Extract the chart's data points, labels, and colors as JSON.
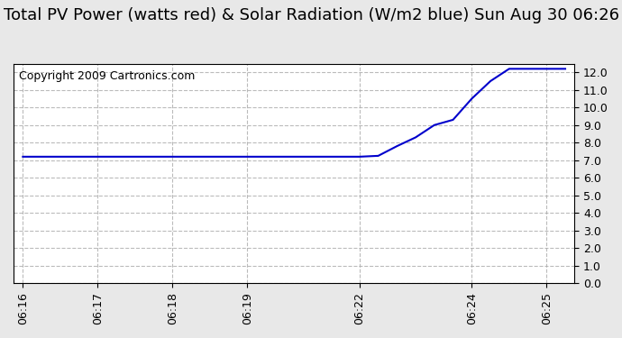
{
  "title": "Total PV Power (watts red) & Solar Radiation (W/m2 blue) Sun Aug 30 06:26",
  "copyright": "Copyright 2009 Cartronics.com",
  "line_color": "#0000cc",
  "background_color": "#e8e8e8",
  "plot_bg_color": "#ffffff",
  "x_values": [
    0,
    1,
    2,
    3,
    4,
    5,
    6,
    7,
    8,
    9,
    10,
    11,
    12,
    13,
    14,
    15,
    16,
    17,
    18,
    19,
    20,
    21,
    22,
    23,
    24,
    25,
    26,
    27,
    28,
    29
  ],
  "y_values": [
    7.2,
    7.2,
    7.2,
    7.2,
    7.2,
    7.2,
    7.2,
    7.2,
    7.2,
    7.2,
    7.2,
    7.2,
    7.2,
    7.2,
    7.2,
    7.2,
    7.2,
    7.2,
    7.2,
    7.25,
    7.8,
    8.3,
    9.0,
    9.3,
    10.5,
    11.5,
    12.2,
    12.2,
    12.2,
    12.2
  ],
  "x_tick_positions": [
    0,
    4,
    8,
    12,
    18,
    24,
    28
  ],
  "x_tick_labels": [
    "06:16",
    "06:17",
    "06:18",
    "06:19",
    "06:22",
    "06:24",
    "06:25"
  ],
  "ylim": [
    0,
    12.5
  ],
  "ytick_values": [
    0.0,
    1.0,
    2.0,
    3.0,
    4.0,
    5.0,
    6.0,
    7.0,
    8.0,
    9.0,
    10.0,
    11.0,
    12.0
  ],
  "title_fontsize": 13,
  "copyright_fontsize": 9,
  "grid_color": "#aaaaaa",
  "grid_style": "--",
  "line_width": 1.5
}
